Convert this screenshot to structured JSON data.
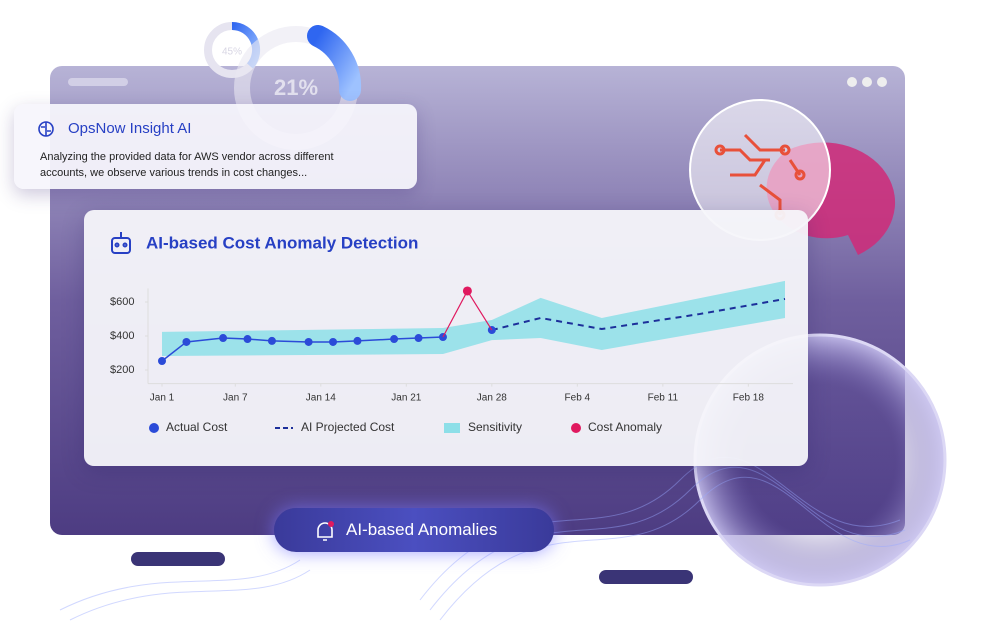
{
  "decor": {
    "gauge_small": "45%",
    "gauge_large": "21%"
  },
  "insight": {
    "title": "OpsNow Insight AI",
    "text": "Analyzing the provided data for AWS vendor across different accounts, we observe various trends in cost changes..."
  },
  "chart_data": {
    "type": "line",
    "title": "AI-based Cost Anomaly Detection",
    "series": [
      {
        "name": "Actual Cost",
        "kind": "point-line",
        "color": "#2b4bd8",
        "x": [
          "Jan 1",
          "Jan 3",
          "Jan 6",
          "Jan 8",
          "Jan 10",
          "Jan 13",
          "Jan 15",
          "Jan 17",
          "Jan 20",
          "Jan 22",
          "Jan 24",
          "Jan 26",
          "Jan 28"
        ],
        "values": [
          253,
          365,
          388,
          382,
          371,
          365,
          365,
          371,
          382,
          388,
          394,
          null,
          435
        ]
      },
      {
        "name": "AI Projected Cost",
        "kind": "dashed-line",
        "color": "#1c2f9a",
        "x": [
          "Jan 28",
          "Feb 1",
          "Feb 6",
          "Feb 14",
          "Feb 21"
        ],
        "values": [
          435,
          506,
          441,
          529,
          618
        ]
      },
      {
        "name": "Sensitivity",
        "kind": "band",
        "color": "#8ddfe8",
        "x": [
          "Jan 1",
          "Jan 24",
          "Jan 28",
          "Feb 1",
          "Feb 6",
          "Feb 21"
        ],
        "upper": [
          424,
          447,
          494,
          624,
          506,
          724
        ],
        "lower": [
          282,
          294,
          376,
          388,
          318,
          506
        ]
      },
      {
        "name": "Cost Anomaly",
        "kind": "point",
        "color": "#e0195f",
        "x": [
          "Jan 26"
        ],
        "values": [
          665
        ]
      }
    ],
    "xlim": [
      "Jan 1",
      "Feb 21"
    ],
    "xticks": [
      "Jan 1",
      "Jan 7",
      "Jan 14",
      "Jan 21",
      "Jan 28",
      "Feb 4",
      "Feb 11",
      "Feb 18"
    ],
    "ylim": [
      120,
      680
    ],
    "yticks": [
      {
        "value": 200,
        "label": "$200"
      },
      {
        "value": 400,
        "label": "$400"
      },
      {
        "value": 600,
        "label": "$600"
      }
    ]
  },
  "badge": "AI-based Anomalies"
}
